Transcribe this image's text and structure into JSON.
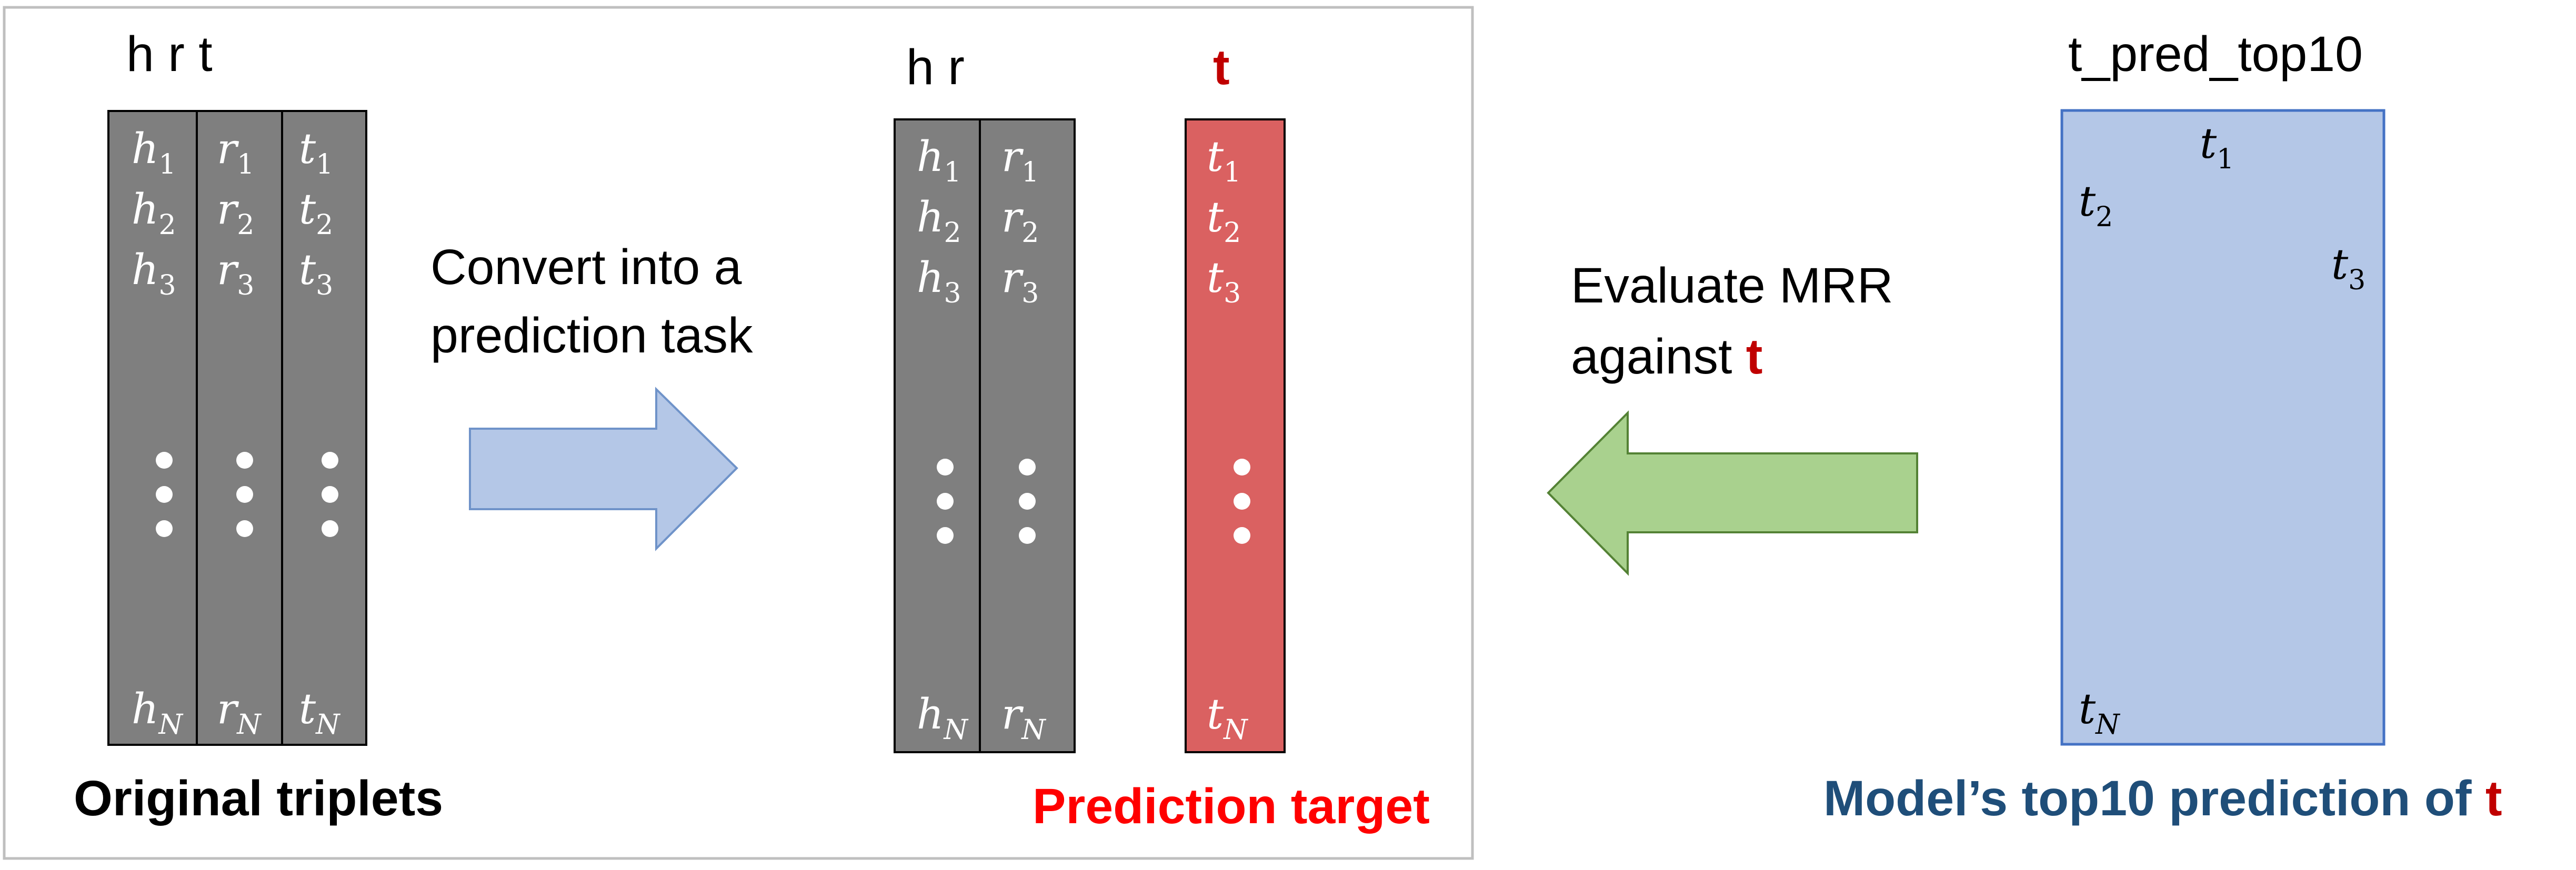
{
  "original": {
    "header": "h r t",
    "caption": "Original triplets",
    "columns": [
      {
        "sym": "h",
        "sub": [
          "1",
          "2",
          "3"
        ],
        "subN": "N"
      },
      {
        "sym": "r",
        "sub": [
          "1",
          "2",
          "3"
        ],
        "subN": "N"
      },
      {
        "sym": "t",
        "sub": [
          "1",
          "2",
          "3"
        ],
        "subN": "N"
      }
    ]
  },
  "convert": {
    "line1": "Convert into a",
    "line2": "prediction task"
  },
  "prediction": {
    "header_hr": "h r",
    "header_t": "t",
    "caption": "Prediction target",
    "columns": [
      {
        "sym": "h",
        "sub": [
          "1",
          "2",
          "3"
        ],
        "subN": "N"
      },
      {
        "sym": "r",
        "sub": [
          "1",
          "2",
          "3"
        ],
        "subN": "N"
      }
    ],
    "target": {
      "sym": "t",
      "sub": [
        "1",
        "2",
        "3"
      ],
      "subN": "N"
    }
  },
  "evaluate": {
    "line1": "Evaluate MRR",
    "line2_prefix": "against ",
    "line2_em": "t"
  },
  "top10": {
    "header": "t_pred_top10",
    "caption_prefix": "Model’s top10 prediction of ",
    "caption_em": "t",
    "items": [
      {
        "sym": "t",
        "sub": "1"
      },
      {
        "sym": "t",
        "sub": "2"
      },
      {
        "sym": "t",
        "sub": "3"
      },
      {
        "sym": "t",
        "sub": "N"
      }
    ]
  },
  "colors": {
    "gray_fill": "#7f7f7f",
    "red_fill": "#da6161",
    "red_text": "#c00000",
    "blue_fill": "#b4c7e7",
    "blue_stroke": "#4472c4",
    "green_fill": "#a9d18e",
    "green_stroke": "#548235",
    "navy_text": "#1f4e79",
    "frame": "#bfbfbf"
  }
}
